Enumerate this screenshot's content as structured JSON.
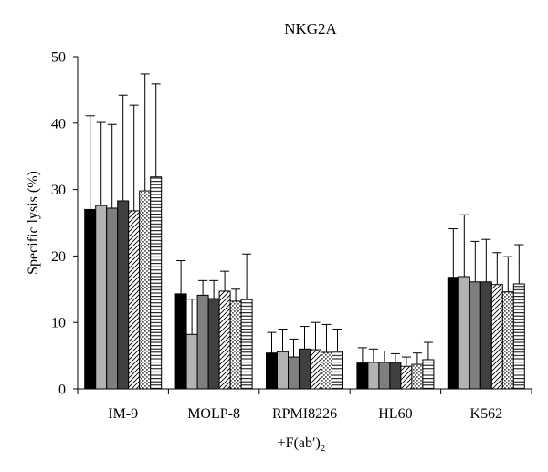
{
  "chart_data": {
    "type": "bar",
    "title": "NKG2A",
    "ylabel": "Specific lysis (%)",
    "xlabel": "+F(ab′)",
    "xlabel_subscript": "2",
    "categories": [
      "IM-9",
      "MOLP-8",
      "RPMI8226",
      "HL60",
      "K562"
    ],
    "ylim": [
      0,
      50
    ],
    "yticks": [
      0,
      10,
      20,
      30,
      40,
      50
    ],
    "grid": false,
    "series": [
      {
        "fill": "#000000",
        "values": [
          27.0,
          14.3,
          5.4,
          3.9,
          16.8
        ],
        "error": [
          14.1,
          5.0,
          3.1,
          2.3,
          7.3
        ]
      },
      {
        "fill": "#b3b3b3",
        "values": [
          27.6,
          8.2,
          5.6,
          4.0,
          16.9
        ],
        "error": [
          12.5,
          5.3,
          3.4,
          2.0,
          9.3
        ]
      },
      {
        "fill": "#7f7f7f",
        "values": [
          27.2,
          14.1,
          4.8,
          4.0,
          16.1
        ],
        "error": [
          12.6,
          2.2,
          2.7,
          1.7,
          6.1
        ]
      },
      {
        "fill": "#404040",
        "values": [
          28.3,
          13.6,
          6.0,
          4.0,
          16.1
        ],
        "error": [
          15.9,
          2.7,
          3.4,
          1.3,
          6.4
        ]
      },
      {
        "fill": "#ffffff",
        "pattern": "diagonal-hatch",
        "values": [
          26.8,
          14.7,
          5.9,
          3.4,
          15.7
        ],
        "error": [
          15.9,
          3.0,
          4.1,
          1.4,
          4.8
        ]
      },
      {
        "fill": "#ffffff",
        "pattern": "dotted",
        "values": [
          29.8,
          13.2,
          5.5,
          3.7,
          14.6
        ],
        "error": [
          17.6,
          1.8,
          4.2,
          1.7,
          5.3
        ]
      },
      {
        "fill": "#ffffff",
        "pattern": "horizontal-stripes",
        "values": [
          31.9,
          13.5,
          5.7,
          4.4,
          15.8
        ],
        "error": [
          14.0,
          6.8,
          3.3,
          2.6,
          5.9
        ]
      }
    ]
  }
}
